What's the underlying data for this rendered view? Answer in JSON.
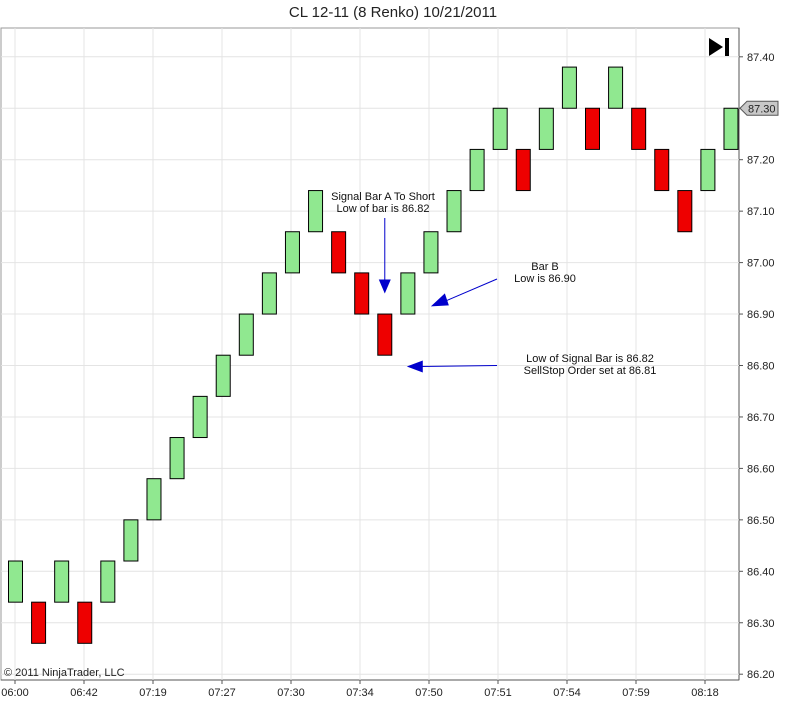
{
  "title": "CL 12-11 (8 Renko)  10/21/2011",
  "copyright": "© 2011 NinjaTrader, LLC",
  "last_price_label": "87.30",
  "play_icon": "skip-to-end-icon",
  "colors": {
    "up": "#90e890",
    "down": "#ee0000",
    "grid": "#e4e4e4",
    "annotation": "#0000cc"
  },
  "chart_data": {
    "type": "renko",
    "brick_size": 0.08,
    "y_ticks": [
      "86.20",
      "86.30",
      "86.40",
      "86.50",
      "86.60",
      "86.70",
      "86.80",
      "86.90",
      "87.00",
      "87.10",
      "87.20",
      "87.30",
      "87.40"
    ],
    "ylim": [
      86.2,
      87.45
    ],
    "x_ticks": [
      "06:00",
      "06:42",
      "07:19",
      "07:27",
      "07:30",
      "07:34",
      "07:50",
      "07:51",
      "07:54",
      "07:59",
      "08:18"
    ],
    "bricks": [
      {
        "dir": "up",
        "open": 86.34,
        "close": 86.42
      },
      {
        "dir": "down",
        "open": 86.34,
        "close": 86.26
      },
      {
        "dir": "up",
        "open": 86.34,
        "close": 86.42
      },
      {
        "dir": "down",
        "open": 86.34,
        "close": 86.26
      },
      {
        "dir": "up",
        "open": 86.34,
        "close": 86.42
      },
      {
        "dir": "up",
        "open": 86.42,
        "close": 86.5
      },
      {
        "dir": "up",
        "open": 86.5,
        "close": 86.58
      },
      {
        "dir": "up",
        "open": 86.58,
        "close": 86.66
      },
      {
        "dir": "up",
        "open": 86.66,
        "close": 86.74
      },
      {
        "dir": "up",
        "open": 86.74,
        "close": 86.82
      },
      {
        "dir": "up",
        "open": 86.82,
        "close": 86.9
      },
      {
        "dir": "up",
        "open": 86.9,
        "close": 86.98
      },
      {
        "dir": "up",
        "open": 86.98,
        "close": 87.06
      },
      {
        "dir": "up",
        "open": 87.06,
        "close": 87.14
      },
      {
        "dir": "down",
        "open": 87.06,
        "close": 86.98
      },
      {
        "dir": "down",
        "open": 86.98,
        "close": 86.9
      },
      {
        "dir": "down",
        "open": 86.9,
        "close": 86.82
      },
      {
        "dir": "up",
        "open": 86.9,
        "close": 86.98
      },
      {
        "dir": "up",
        "open": 86.98,
        "close": 87.06
      },
      {
        "dir": "up",
        "open": 87.06,
        "close": 87.14
      },
      {
        "dir": "up",
        "open": 87.14,
        "close": 87.22
      },
      {
        "dir": "up",
        "open": 87.22,
        "close": 87.3
      },
      {
        "dir": "down",
        "open": 87.22,
        "close": 87.14
      },
      {
        "dir": "up",
        "open": 87.22,
        "close": 87.3
      },
      {
        "dir": "up",
        "open": 87.3,
        "close": 87.38
      },
      {
        "dir": "down",
        "open": 87.3,
        "close": 87.22
      },
      {
        "dir": "up",
        "open": 87.3,
        "close": 87.38
      },
      {
        "dir": "down",
        "open": 87.3,
        "close": 87.22
      },
      {
        "dir": "down",
        "open": 87.22,
        "close": 87.14
      },
      {
        "dir": "down",
        "open": 87.14,
        "close": 87.06
      },
      {
        "dir": "up",
        "open": 87.14,
        "close": 87.22
      },
      {
        "dir": "up",
        "open": 87.22,
        "close": 87.3
      }
    ],
    "annotations": [
      {
        "lines": [
          "Signal Bar A To Short",
          "Low of bar is 86.82"
        ],
        "arrow": "down",
        "brick": 16,
        "price": 86.94
      },
      {
        "lines": [
          "Bar B",
          "Low is 86.90"
        ],
        "arrow": "left",
        "brick": 17,
        "price": 86.915
      },
      {
        "lines": [
          "Low of Signal Bar is 86.82",
          "SellStop Order set at 86.81"
        ],
        "arrow": "left",
        "brick": 16,
        "price": 86.8
      }
    ]
  }
}
